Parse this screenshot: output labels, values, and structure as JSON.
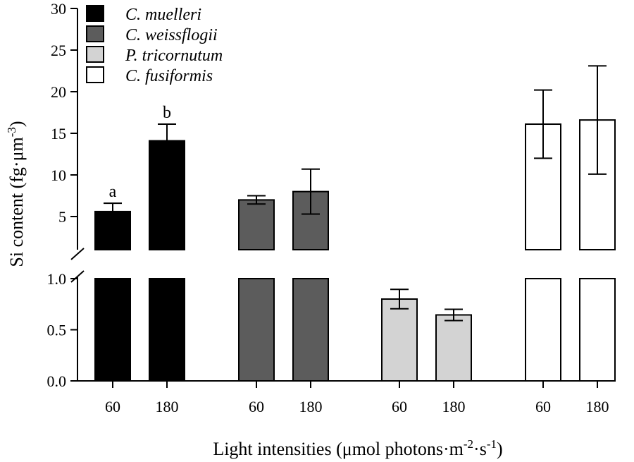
{
  "chart_data": {
    "type": "bar",
    "xlabel_main": "Light intensities (μmol photons·m",
    "xlabel_sup1": "-2",
    "xlabel_mid": "·s",
    "xlabel_sup2": "-1",
    "xlabel_end": ")",
    "ylabel_main": "Si content (fg·μm",
    "ylabel_sup": "-3",
    "ylabel_end": ")",
    "y_axis_break": true,
    "upper_segment": {
      "ylim": [
        1.0,
        30
      ],
      "ticks": [
        5,
        10,
        15,
        20,
        25,
        30
      ]
    },
    "lower_segment": {
      "ylim": [
        0.0,
        1.0
      ],
      "ticks": [
        "0.0",
        "0.5",
        "1.0"
      ]
    },
    "legend_position": "top-left",
    "series": [
      {
        "name": "C. muelleri",
        "color": "#000000",
        "categories": [
          "60",
          "180"
        ],
        "values": [
          5.6,
          14.1
        ],
        "errors": [
          1.0,
          2.0
        ],
        "annotations": [
          "a",
          "b"
        ]
      },
      {
        "name": "C. weissflogii",
        "color": "#5c5c5c",
        "categories": [
          "60",
          "180"
        ],
        "values": [
          7.0,
          8.0
        ],
        "errors": [
          0.5,
          2.7
        ],
        "annotations": [
          "",
          ""
        ]
      },
      {
        "name": "P. tricornutum",
        "color": "#d3d3d3",
        "categories": [
          "60",
          "180"
        ],
        "values": [
          0.8,
          0.645
        ],
        "errors": [
          0.095,
          0.055
        ],
        "annotations": [
          "",
          ""
        ]
      },
      {
        "name": "C. fusiformis",
        "color": "#ffffff",
        "categories": [
          "60",
          "180"
        ],
        "values": [
          16.1,
          16.6
        ],
        "errors": [
          4.1,
          6.5
        ],
        "annotations": [
          "",
          ""
        ]
      }
    ]
  }
}
